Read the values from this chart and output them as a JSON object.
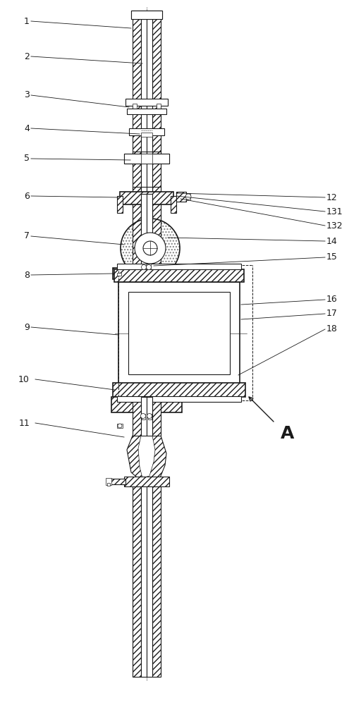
{
  "bg_color": "#ffffff",
  "line_color": "#1a1a1a",
  "figsize": [
    5.12,
    10.0
  ],
  "dpi": 100,
  "annotation_A": "A",
  "left_labels": [
    "1",
    "2",
    "3",
    "4",
    "5",
    "6",
    "7",
    "8",
    "9",
    "10",
    "11"
  ],
  "right_labels": [
    "12",
    "131",
    "132",
    "14",
    "15",
    "16",
    "17",
    "18"
  ]
}
